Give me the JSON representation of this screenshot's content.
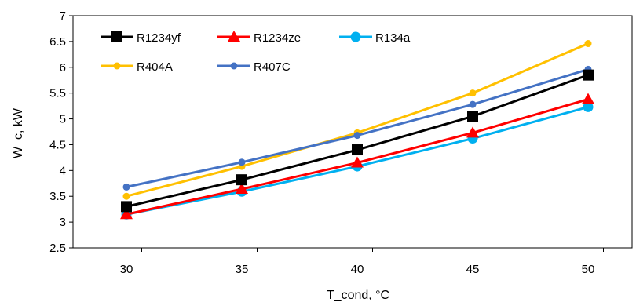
{
  "chart_data": {
    "type": "line",
    "xlabel": "T_cond, °C",
    "ylabel": "W_c, kW",
    "x": [
      30,
      35,
      40,
      45,
      50
    ],
    "x_ticks": [
      "30",
      "35",
      "40",
      "45",
      "50"
    ],
    "ylim": [
      2.5,
      7
    ],
    "y_ticks": [
      "2.5",
      "3",
      "3.5",
      "4",
      "4.5",
      "5",
      "5.5",
      "6",
      "6.5",
      "7"
    ],
    "grid": false,
    "legend_placement": "top-left",
    "series": [
      {
        "name": "R1234yf",
        "color": "#000000",
        "marker": "square",
        "values": [
          3.3,
          3.82,
          4.4,
          5.05,
          5.85
        ]
      },
      {
        "name": "R1234ze",
        "color": "#ff0000",
        "marker": "triangle",
        "values": [
          3.15,
          3.64,
          4.15,
          4.73,
          5.38
        ]
      },
      {
        "name": "R134a",
        "color": "#00b0f0",
        "marker": "circle",
        "values": [
          3.15,
          3.59,
          4.08,
          4.62,
          5.23
        ]
      },
      {
        "name": "R404A",
        "color": "#ffc000",
        "marker": "dot",
        "values": [
          3.5,
          4.08,
          4.73,
          5.5,
          6.46
        ]
      },
      {
        "name": "R407C",
        "color": "#4472c4",
        "marker": "dot",
        "values": [
          3.68,
          4.16,
          4.68,
          5.28,
          5.96
        ]
      }
    ]
  }
}
